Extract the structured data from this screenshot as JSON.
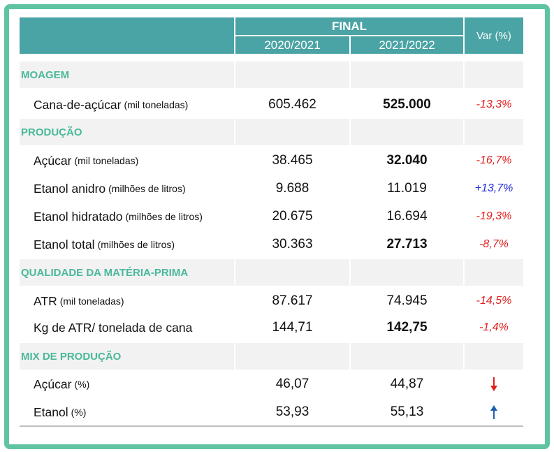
{
  "header": {
    "final_label": "FINAL",
    "years": [
      "2020/2021",
      "2021/2022"
    ],
    "var_label": "Var (%)"
  },
  "sections": {
    "moagem": "MOAGEM",
    "producao": "PRODUÇÃO",
    "qualidade": "QUALIDADE DA MATÉRIA-PRIMA",
    "mix": "MIX DE PRODUÇÃO"
  },
  "rows": {
    "cana": {
      "name": "Cana-de-açúcar",
      "unit": "(mil toneladas)",
      "v2021": "605.462",
      "v2022": "525.000",
      "var": "-13,3%"
    },
    "acucar": {
      "name": "Açúcar",
      "unit": "(mil toneladas)",
      "v2021": "38.465",
      "v2022": "32.040",
      "var": "-16,7%"
    },
    "anidro": {
      "name": "Etanol anidro",
      "unit": "(milhões de litros)",
      "v2021": "9.688",
      "v2022": "11.019",
      "var": "+13,7%"
    },
    "hidratado": {
      "name": "Etanol hidratado",
      "unit": "(milhões de litros)",
      "v2021": "20.675",
      "v2022": "16.694",
      "var": "-19,3%"
    },
    "total": {
      "name": "Etanol total",
      "unit": "(milhões de litros)",
      "v2021": "30.363",
      "v2022": "27.713",
      "var": "-8,7%"
    },
    "atr": {
      "name": "ATR",
      "unit": "(mil toneladas)",
      "v2021": "87.617",
      "v2022": "74.945",
      "var": "-14,5%"
    },
    "kgatr": {
      "name": "Kg de ATR/ tonelada de cana",
      "unit": "",
      "v2021": "144,71",
      "v2022": "142,75",
      "var": "-1,4%"
    },
    "mix_acucar": {
      "name": "Açúcar",
      "unit": "(%)",
      "v2021": "46,07",
      "v2022": "44,87",
      "trend": "down-arrow-icon"
    },
    "mix_etanol": {
      "name": "Etanol",
      "unit": "(%)",
      "v2021": "53,93",
      "v2022": "55,13",
      "trend": "up-arrow-icon"
    }
  },
  "colors": {
    "header_bg": "#4aa3a5",
    "section_text": "#4ab89a",
    "frame": "#5ec4a4",
    "negative": "#e0201e",
    "positive": "#1f2bd6"
  }
}
